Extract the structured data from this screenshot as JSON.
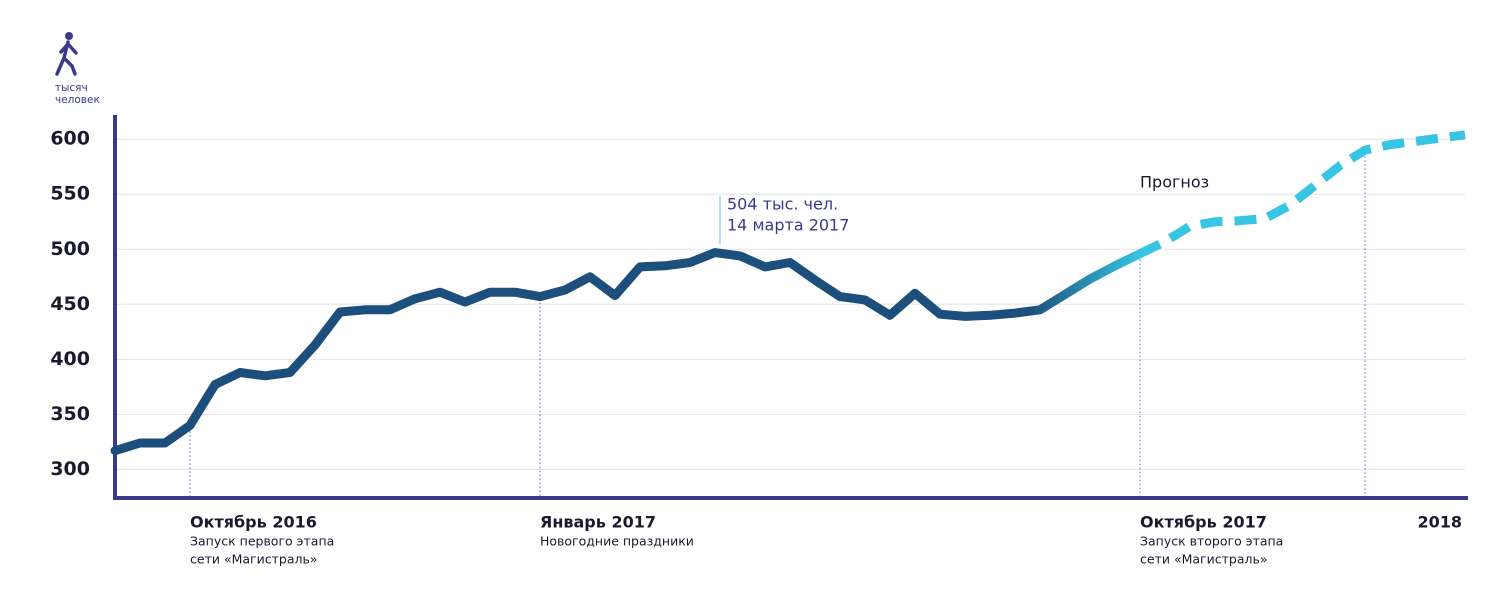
{
  "chart_data": {
    "type": "line",
    "y_label": [
      "тысяч",
      "человек"
    ],
    "categories": [
      null,
      null,
      null,
      "Октябрь 2016",
      null,
      null,
      null,
      null,
      null,
      null,
      null,
      null,
      null,
      null,
      null,
      null,
      null,
      "Январь 2017",
      null,
      null,
      null,
      null,
      null,
      null,
      null,
      null,
      null,
      null,
      null,
      null,
      null,
      null,
      null,
      null,
      null,
      null,
      null,
      null,
      null,
      null,
      null,
      "Октябрь 2017",
      null,
      null,
      null,
      null,
      null,
      null,
      null,
      null,
      "2018",
      null,
      null,
      null,
      null
    ],
    "notes": [
      null,
      null,
      null,
      [
        "Запуск первого этапа",
        "сети «Магистраль»"
      ],
      null,
      null,
      null,
      null,
      null,
      null,
      null,
      null,
      null,
      null,
      null,
      null,
      null,
      [
        "Новогодние праздники"
      ],
      null,
      null,
      null,
      null,
      null,
      null,
      null,
      null,
      null,
      null,
      null,
      null,
      null,
      null,
      null,
      null,
      null,
      null,
      null,
      null,
      null,
      null,
      null,
      [
        "Запуск второго этапа",
        "сети «Магистраль»"
      ],
      null,
      null,
      null,
      null,
      null,
      null,
      null,
      null,
      null,
      null,
      null,
      null,
      null
    ],
    "series": [
      {
        "name": null,
        "color": "#1d4f7c",
        "dashed": false,
        "values": [
          317,
          324,
          324,
          340,
          377,
          388,
          385,
          388,
          413,
          443,
          445,
          445,
          455,
          461,
          452,
          461,
          461,
          457,
          463,
          475,
          458,
          484,
          485,
          488,
          497,
          494,
          484,
          488,
          472,
          457,
          454,
          440,
          460,
          441,
          439,
          440,
          442,
          445,
          459,
          473,
          485,
          496,
          null,
          null,
          null,
          null,
          null,
          null,
          null,
          null,
          null,
          null,
          null,
          null,
          null
        ]
      },
      {
        "name": null,
        "color": "#36c5e2",
        "dashed": true,
        "values": [
          null,
          null,
          null,
          null,
          null,
          null,
          null,
          null,
          null,
          null,
          null,
          null,
          null,
          null,
          null,
          null,
          null,
          null,
          null,
          null,
          null,
          null,
          null,
          null,
          null,
          null,
          null,
          null,
          null,
          null,
          null,
          null,
          null,
          null,
          null,
          null,
          null,
          null,
          null,
          null,
          null,
          496,
          507,
          521,
          525,
          526,
          528,
          540,
          558,
          576,
          590,
          595,
          598,
          601,
          604
        ]
      }
    ],
    "annotations": [
      [
        "504 тыс. чел.",
        "14 марта 2017"
      ],
      "Прогноз"
    ],
    "ylim": [
      274,
      622
    ],
    "yticks": [
      300,
      350,
      400,
      450,
      500,
      550,
      600
    ],
    "grid": true
  }
}
